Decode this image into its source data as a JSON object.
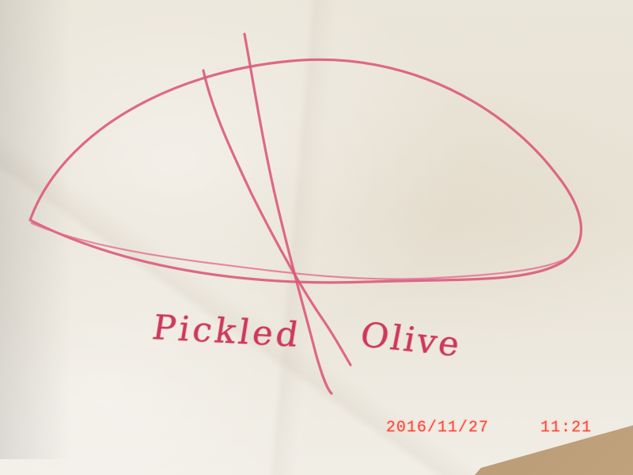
{
  "photo": {
    "subject": "crayon drawing on paper",
    "labels": {
      "left": "Pickled",
      "right": "Olive"
    },
    "timestamp": {
      "date": "2016/11/27",
      "time": "11:21"
    },
    "colors": {
      "paper": "#ebe6da",
      "crayon": "#dc5a7a",
      "label_text": "#c9224a",
      "timestamp": "#ff4638",
      "table": "#b79c79"
    }
  }
}
